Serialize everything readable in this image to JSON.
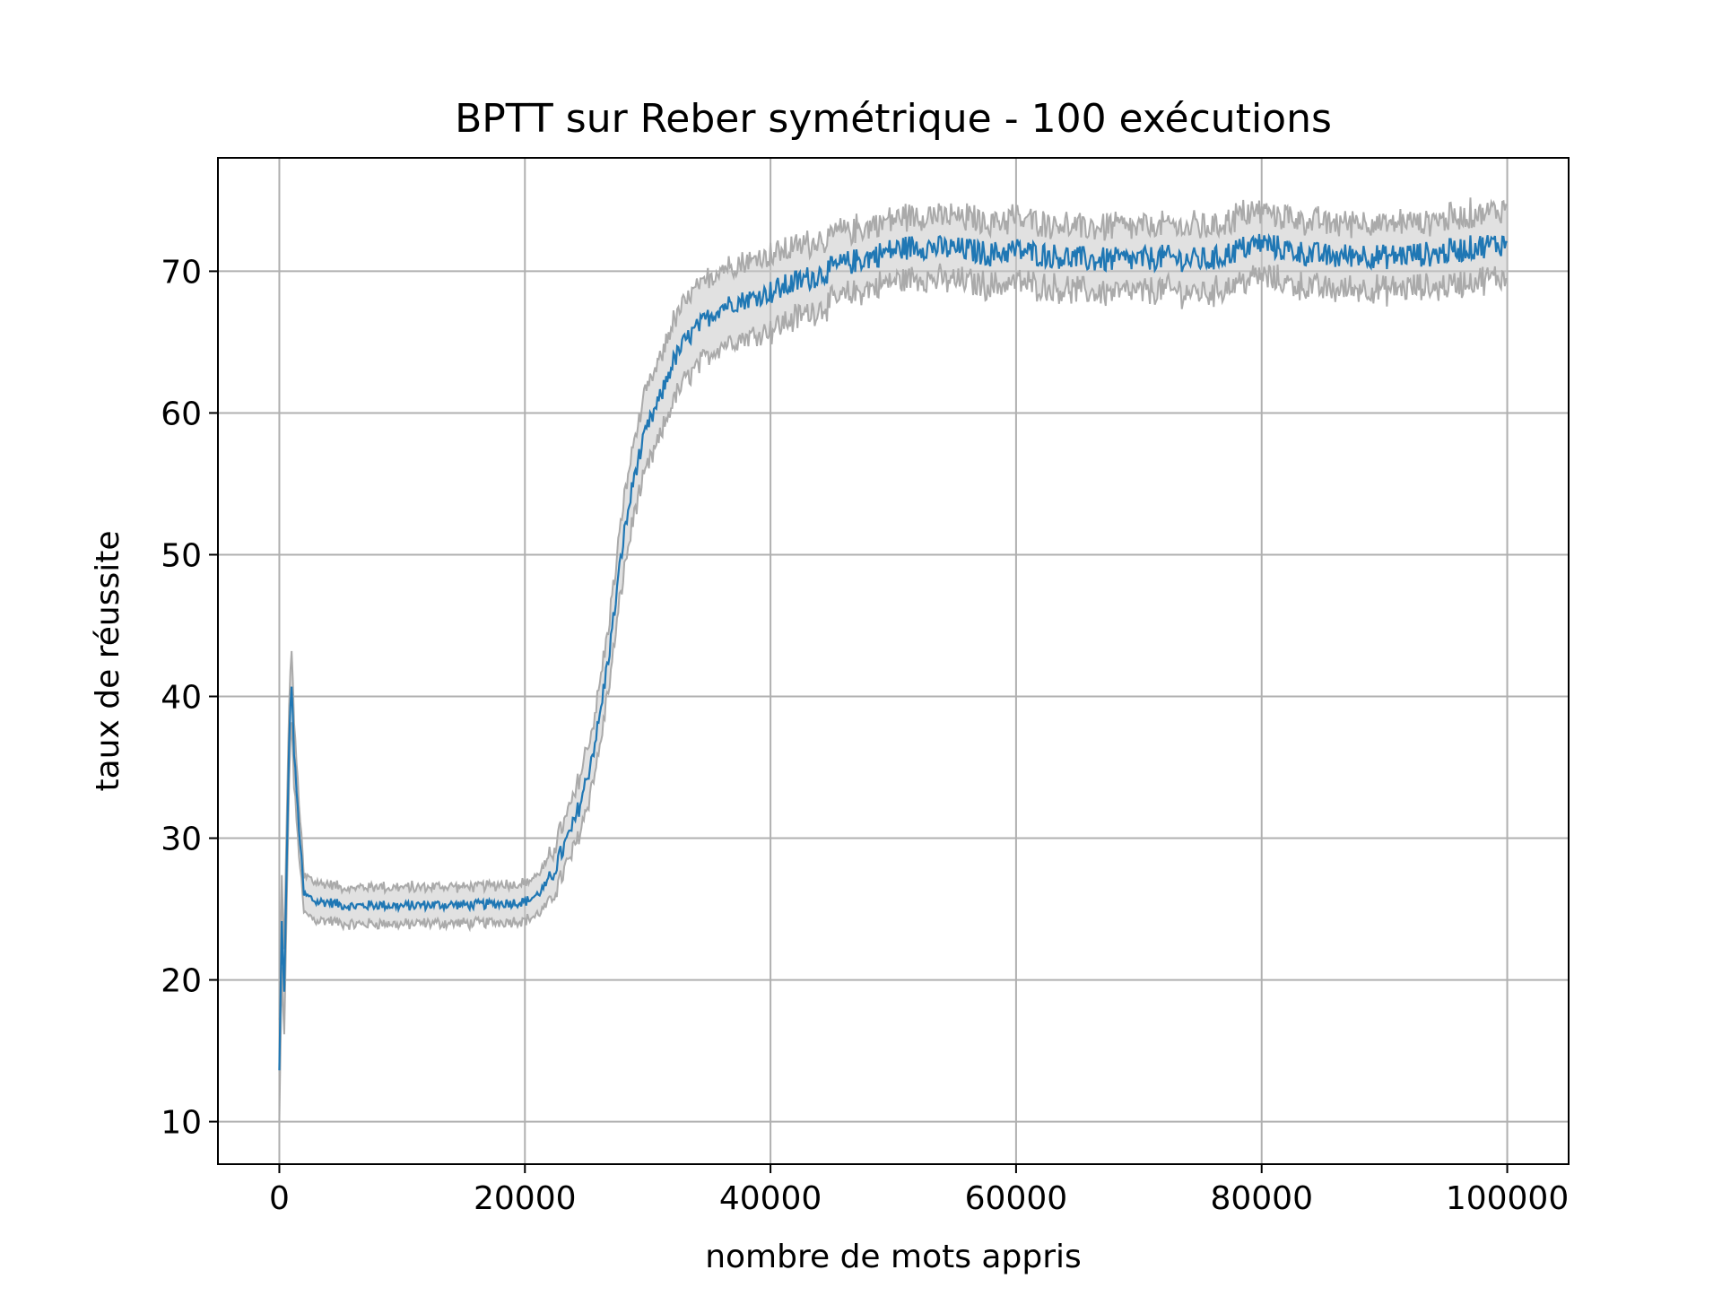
{
  "chart_data": {
    "type": "line",
    "title": "BPTT sur Reber symétrique - 100 exécutions",
    "xlabel": "nombre de mots appris",
    "ylabel": "taux de réussite",
    "xlim": [
      -5000,
      105000
    ],
    "ylim": [
      7,
      78
    ],
    "x_ticks": [
      0,
      20000,
      40000,
      60000,
      80000,
      100000
    ],
    "x_tick_labels": [
      "0",
      "20000",
      "40000",
      "60000",
      "80000",
      "100000"
    ],
    "y_ticks": [
      10,
      20,
      30,
      40,
      50,
      60,
      70
    ],
    "y_tick_labels": [
      "10",
      "20",
      "30",
      "40",
      "50",
      "60",
      "70"
    ],
    "grid": true,
    "series": [
      {
        "role": "mean",
        "color": "#1f77b4",
        "x": [
          0,
          200,
          400,
          600,
          800,
          1000,
          1200,
          1500,
          2000,
          2500,
          3000,
          4000,
          5000,
          6000,
          8000,
          10000,
          12000,
          14000,
          16000,
          18000,
          20000,
          21000,
          22000,
          23000,
          24000,
          25000,
          26000,
          27000,
          28000,
          29000,
          30000,
          31000,
          32000,
          33000,
          34000,
          35000,
          36000,
          37000,
          38000,
          40000,
          42000,
          44000,
          46000,
          48000,
          50000,
          52000,
          54000,
          56000,
          58000,
          60000,
          62000,
          64000,
          66000,
          68000,
          70000,
          72000,
          74000,
          76000,
          78000,
          80000,
          82000,
          84000,
          86000,
          88000,
          90000,
          92000,
          94000,
          96000,
          98000,
          100000
        ],
        "values": [
          13.5,
          24,
          19,
          28,
          37,
          41,
          36,
          32,
          26,
          25.8,
          25.5,
          25.5,
          25.3,
          25.2,
          25.3,
          25.2,
          25.3,
          25.3,
          25.3,
          25.4,
          25.5,
          26,
          27,
          29,
          31,
          34,
          38,
          44,
          51,
          56,
          59,
          61,
          63.5,
          65,
          66,
          66.8,
          67.5,
          67.8,
          68,
          68.5,
          69.2,
          69.8,
          70.5,
          71,
          71.5,
          71.8,
          71.6,
          71.5,
          71.2,
          71.5,
          71.2,
          71,
          70.8,
          70.8,
          70.8,
          71,
          70.8,
          70.8,
          71.5,
          72,
          71.5,
          71.2,
          71,
          71.2,
          71,
          71.2,
          71.2,
          71.5,
          71.8,
          72
        ]
      },
      {
        "role": "dispersion band (min/max)",
        "color": "#aaaaaa",
        "half_width_x": [
          0,
          1000,
          2000,
          20000,
          24000,
          30000,
          40000,
          48000,
          100000
        ],
        "half_width_values": [
          3.5,
          2.5,
          1.3,
          1.3,
          1.8,
          2.8,
          2.6,
          2.2,
          2.4
        ]
      }
    ]
  }
}
